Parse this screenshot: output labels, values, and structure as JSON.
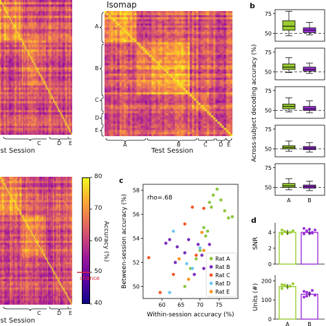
{
  "figure": {
    "panel_b_letter": "b",
    "panel_c_letter": "c",
    "panel_d_letter": "d",
    "heatmap_top_left": {
      "xlabel": "Test Session",
      "tick_labels": [
        "C",
        "D",
        "E"
      ]
    },
    "heatmap_isomap": {
      "title": "Isomap",
      "xlabel": "Test Session",
      "x_tick_labels": [
        "A",
        "B",
        "C",
        "D",
        "E"
      ],
      "y_tick_labels": [
        "A",
        "B",
        "C",
        "D",
        "E"
      ]
    },
    "heatmap_bottom_left": {
      "xlabel": "Test Session",
      "tick_labels": [
        "C",
        "D",
        "E"
      ]
    },
    "colorbar": {
      "label": "Accuracy (%)",
      "ticks": [
        80,
        70,
        60,
        50,
        40
      ],
      "chance_label": "chance",
      "chance_value": 50
    },
    "colors": {
      "rat_a": "#8dc63f",
      "rat_b": "#7b2fbe",
      "rat_c": "#f15a29",
      "rat_d": "#6ec6f0",
      "rat_e": "#f7941d",
      "chance_marker": "#d7263d",
      "box_green": "#9acd32",
      "box_purple": "#9b30d9"
    }
  },
  "chart_data": [
    {
      "type": "box",
      "panel": "b",
      "ylabel": "Across-subject decoding accuracy (%)",
      "categories": [
        "A",
        "B"
      ],
      "yticks": [
        50,
        75
      ],
      "ylim": [
        40,
        80
      ],
      "chance": 50,
      "rows": [
        {
          "A": {
            "min": 47,
            "q1": 54,
            "median": 59,
            "q3": 66,
            "max": 78
          },
          "B": {
            "min": 48,
            "q1": 51,
            "median": 54,
            "q3": 57,
            "max": 64
          }
        },
        {
          "A": {
            "min": 49,
            "q1": 53,
            "median": 56,
            "q3": 60,
            "max": 68
          },
          "B": {
            "min": 48,
            "q1": 51,
            "median": 53,
            "q3": 56,
            "max": 61
          }
        },
        {
          "A": {
            "min": 48,
            "q1": 52,
            "median": 55,
            "q3": 58,
            "max": 66
          },
          "B": {
            "min": 47,
            "q1": 50,
            "median": 52,
            "q3": 55,
            "max": 62
          }
        },
        {
          "A": {
            "min": 47,
            "q1": 50,
            "median": 52,
            "q3": 54,
            "max": 60
          },
          "B": {
            "min": 46,
            "q1": 49,
            "median": 51,
            "q3": 53,
            "max": 58
          }
        },
        {
          "A": {
            "min": 47,
            "q1": 50,
            "median": 52,
            "q3": 55,
            "max": 61
          },
          "B": {
            "min": 46,
            "q1": 49,
            "median": 51,
            "q3": 53,
            "max": 58
          }
        }
      ]
    },
    {
      "type": "scatter",
      "panel": "c",
      "xlabel": "Within-session accuracy (%)",
      "ylabel": "Between-session accuracy (%)",
      "annotation": "rho=.68",
      "xlim": [
        55,
        80
      ],
      "ylim": [
        49,
        58.5
      ],
      "xticks": [
        60,
        65,
        70,
        75
      ],
      "yticks": [
        50,
        52,
        54,
        56,
        58
      ],
      "legend_position": "bottom-right",
      "series": [
        {
          "name": "Rat A",
          "points": [
            [
              74.5,
              58.1
            ],
            [
              73.5,
              57.6
            ],
            [
              75.5,
              57.2
            ],
            [
              72.5,
              57.0
            ],
            [
              73.0,
              56.6
            ],
            [
              76.5,
              56.3
            ],
            [
              78.5,
              55.8
            ],
            [
              77.5,
              55.7
            ],
            [
              71.0,
              54.9
            ],
            [
              72.0,
              54.6
            ],
            [
              71.5,
              54.2
            ],
            [
              70.0,
              53.0
            ],
            [
              69.0,
              52.3
            ],
            [
              67.5,
              51.5
            ],
            [
              66.0,
              50.0
            ]
          ]
        },
        {
          "name": "Rat B",
          "points": [
            [
              61.0,
              53.6
            ],
            [
              62.0,
              53.9
            ],
            [
              64.0,
              53.3
            ],
            [
              66.0,
              52.8
            ],
            [
              63.5,
              52.0
            ],
            [
              67.0,
              53.9
            ],
            [
              69.5,
              53.5
            ],
            [
              70.5,
              52.6
            ],
            [
              71.0,
              51.5
            ],
            [
              68.5,
              51.0
            ],
            [
              72.5,
              53.5
            ]
          ]
        },
        {
          "name": "Rat C",
          "points": [
            [
              68.0,
              56.6
            ],
            [
              71.0,
              56.5
            ],
            [
              66.0,
              55.2
            ],
            [
              56.5,
              52.4
            ],
            [
              69.0,
              52.6
            ],
            [
              63.0,
              51.0
            ],
            [
              59.5,
              49.5
            ]
          ]
        },
        {
          "name": "Rat D",
          "points": [
            [
              63.0,
              54.6
            ],
            [
              66.5,
              51.9
            ],
            [
              70.0,
              53.2
            ],
            [
              68.0,
              51.5
            ],
            [
              62.0,
              49.5
            ]
          ]
        },
        {
          "name": "Rat E",
          "points": [
            [
              64.5,
              52.3
            ],
            [
              67.0,
              50.6
            ],
            [
              71.0,
              53.0
            ],
            [
              70.5,
              54.5
            ]
          ]
        }
      ]
    },
    {
      "type": "bar",
      "panel": "d",
      "subpanels": [
        {
          "ylabel": "SNR",
          "categories": [
            "A",
            "B"
          ],
          "values": [
            4.0,
            4.0
          ],
          "yticks": [
            0,
            2,
            4
          ],
          "ylim": [
            0,
            5.2
          ],
          "points": {
            "A": [
              4.3,
              4.1,
              3.9,
              4.0,
              4.2,
              3.8,
              4.1,
              4.0
            ],
            "B": [
              4.5,
              4.2,
              3.9,
              4.0,
              4.3,
              3.8,
              4.1,
              4.4,
              3.9
            ]
          }
        },
        {
          "ylabel": "Units (#)",
          "categories": [
            "A",
            "B"
          ],
          "values": [
            170,
            130
          ],
          "yticks": [
            0,
            100,
            200
          ],
          "ylim": [
            0,
            230
          ],
          "points": {
            "A": [
              180,
              175,
              168,
              172,
              185,
              160,
              178,
              171
            ],
            "B": [
              145,
              120,
              135,
              150,
              125,
              115,
              140,
              130
            ]
          }
        }
      ],
      "xtick_labels": [
        "A",
        "B"
      ]
    }
  ]
}
